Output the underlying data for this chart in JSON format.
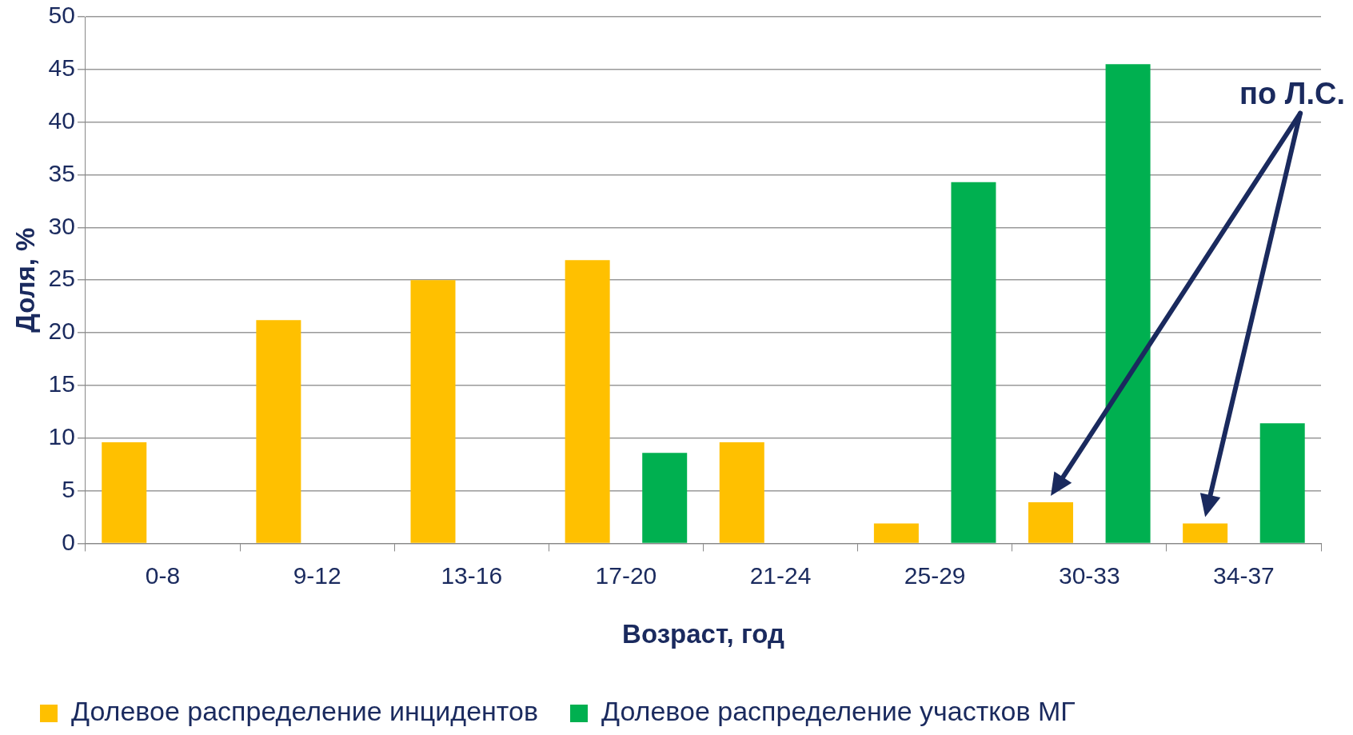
{
  "chart_data": {
    "type": "bar",
    "xlabel": "Возраст, год",
    "ylabel": "Доля, %",
    "categories": [
      "0-8",
      "9-12",
      "13-16",
      "17-20",
      "21-24",
      "25-29",
      "30-33",
      "34-37"
    ],
    "series": [
      {
        "name": "Долевое распределение инцидентов",
        "color": "#ffc000",
        "values": [
          9.6,
          21.2,
          25.0,
          26.9,
          9.6,
          1.9,
          3.9,
          1.9
        ]
      },
      {
        "name": "Долевое распределение участков МГ",
        "color": "#00b050",
        "values": [
          null,
          null,
          null,
          8.6,
          null,
          34.3,
          45.5,
          11.4
        ]
      }
    ],
    "ylim": [
      0,
      50
    ],
    "yticks": [
      0,
      5,
      10,
      15,
      20,
      25,
      30,
      35,
      40,
      45,
      50
    ],
    "grid": "y",
    "legend": "bottom",
    "annotations": [
      "по Л.С."
    ]
  }
}
